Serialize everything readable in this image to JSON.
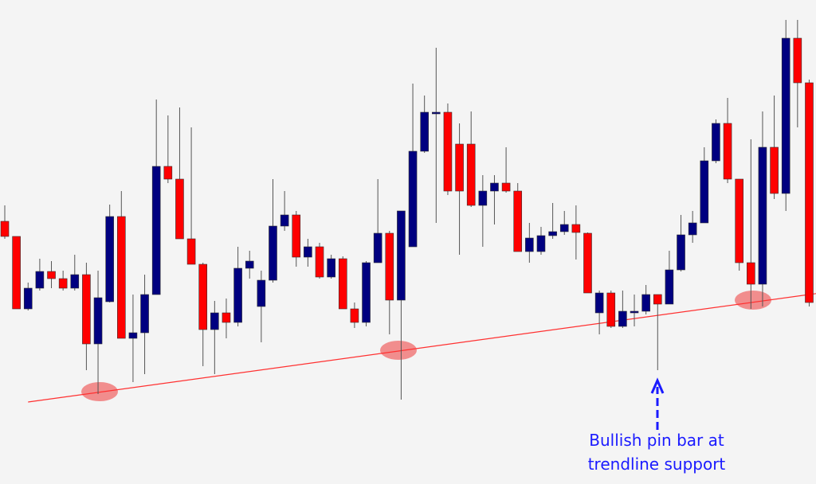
{
  "chart_data": {
    "type": "candlestick",
    "up_color": "#000080",
    "down_color": "#ff0000",
    "ylim": [
      0,
      608
    ],
    "open": [
      330,
      311,
      220,
      246,
      267,
      258,
      246,
      263,
      176,
      229,
      336,
      183,
      190,
      238,
      399,
      383,
      308,
      276,
      194,
      215,
      203,
      271,
      223,
      256,
      324,
      338,
      285,
      298,
      260,
      283,
      220,
      203,
      278,
      315,
      231,
      298,
      418,
      467,
      467,
      427,
      427,
      350,
      368,
      378,
      368,
      292,
      292,
      312,
      317,
      326,
      315,
      215,
      240,
      198,
      215,
      217,
      238,
      226,
      269,
      313,
      328,
      406,
      453,
      383,
      278,
      251,
      423,
      365,
      560,
      504
    ],
    "high": [
      350,
      311,
      253,
      283,
      280,
      268,
      288,
      278,
      268,
      351,
      368,
      238,
      263,
      483,
      463,
      473,
      448,
      278,
      230,
      233,
      298,
      293,
      268,
      383,
      368,
      343,
      308,
      303,
      288,
      286,
      228,
      280,
      383,
      318,
      343,
      503,
      488,
      548,
      478,
      453,
      468,
      388,
      388,
      423,
      378,
      328,
      323,
      353,
      343,
      350,
      316,
      243,
      243,
      243,
      238,
      250,
      238,
      293,
      338,
      343,
      423,
      458,
      485,
      383,
      433,
      468,
      488,
      583,
      583,
      508
    ],
    "low": [
      308,
      220,
      218,
      243,
      246,
      243,
      243,
      143,
      113,
      228,
      183,
      128,
      138,
      238,
      378,
      308,
      276,
      148,
      138,
      183,
      198,
      258,
      178,
      253,
      318,
      273,
      273,
      258,
      258,
      220,
      196,
      198,
      278,
      188,
      106,
      298,
      416,
      328,
      363,
      288,
      348,
      298,
      326,
      366,
      292,
      278,
      288,
      308,
      313,
      282,
      240,
      188,
      196,
      196,
      198,
      213,
      143,
      226,
      267,
      303,
      328,
      403,
      378,
      268,
      220,
      223,
      358,
      343,
      448,
      223
    ],
    "close": [
      311,
      220,
      246,
      267,
      258,
      246,
      263,
      176,
      234,
      336,
      183,
      190,
      238,
      399,
      383,
      308,
      276,
      194,
      215,
      203,
      271,
      280,
      256,
      324,
      338,
      285,
      298,
      260,
      283,
      220,
      203,
      278,
      315,
      231,
      343,
      418,
      467,
      467,
      368,
      368,
      350,
      368,
      378,
      368,
      292,
      309,
      312,
      317,
      326,
      316,
      240,
      240,
      198,
      217,
      217,
      238,
      226,
      269,
      313,
      328,
      406,
      453,
      383,
      278,
      251,
      423,
      365,
      560,
      504,
      228
    ],
    "trendline": {
      "x": [
        2,
        69
      ],
      "values": [
        103,
        238
      ],
      "color": "#ff3030"
    },
    "annotation": "Bullish pin bar at trendline support"
  }
}
